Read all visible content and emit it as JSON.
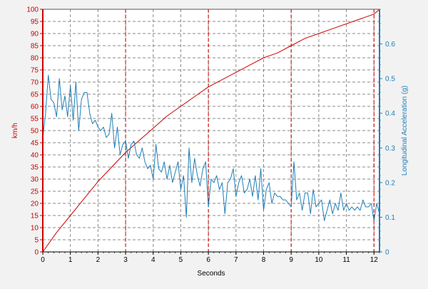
{
  "colors": {
    "background": "#f2f2f2",
    "plot_background": "#ffffff",
    "speed": "#cc0000",
    "acceleration": "#1f7fb8",
    "grid": "#8a8a8a",
    "text": "#000000"
  },
  "chart_data": {
    "type": "line",
    "xlabel": "Seconds",
    "xlim": [
      0,
      12.2
    ],
    "x_ticks": [
      "0",
      "1",
      "2",
      "3",
      "4",
      "5",
      "6",
      "7",
      "8",
      "9",
      "10",
      "11",
      "12"
    ],
    "grid": true,
    "y_left": {
      "label": "km/h",
      "lim": [
        0,
        100
      ],
      "ticks": [
        "0",
        "5",
        "10",
        "15",
        "20",
        "25",
        "30",
        "35",
        "40",
        "45",
        "50",
        "55",
        "60",
        "65",
        "70",
        "75",
        "80",
        "85",
        "90",
        "95",
        "100"
      ]
    },
    "y_right": {
      "label": "Longitudinal Acceleration (g)",
      "lim": [
        0,
        0.7
      ],
      "ticks": [
        "0",
        "0.1",
        "0.2",
        "0.3",
        "0.4",
        "0.5",
        "0.6"
      ]
    },
    "markers_x": [
      3,
      6,
      9,
      12
    ],
    "series": [
      {
        "key": "speed",
        "axis": "left",
        "x": [
          0,
          0.5,
          1,
          1.5,
          2,
          2.5,
          3,
          3.5,
          4,
          4.5,
          5,
          5.5,
          6,
          6.5,
          7,
          7.5,
          8,
          8.5,
          9,
          9.5,
          10,
          10.5,
          11,
          11.5,
          12,
          12.2
        ],
        "values": [
          0,
          8,
          15,
          22,
          29,
          35,
          41,
          46,
          51,
          56,
          60,
          64,
          68,
          71,
          74,
          77,
          80,
          82,
          85,
          88,
          90,
          92,
          94,
          96,
          98,
          100
        ]
      },
      {
        "key": "acceleration",
        "axis": "right",
        "x": [
          0,
          0.1,
          0.2,
          0.3,
          0.4,
          0.5,
          0.6,
          0.7,
          0.8,
          0.9,
          1,
          1.1,
          1.2,
          1.3,
          1.4,
          1.5,
          1.6,
          1.7,
          1.8,
          1.9,
          2,
          2.1,
          2.2,
          2.3,
          2.4,
          2.5,
          2.6,
          2.7,
          2.8,
          2.9,
          3,
          3.1,
          3.2,
          3.3,
          3.4,
          3.5,
          3.6,
          3.7,
          3.8,
          3.9,
          4,
          4.1,
          4.2,
          4.3,
          4.4,
          4.5,
          4.6,
          4.7,
          4.8,
          4.9,
          5,
          5.1,
          5.2,
          5.3,
          5.4,
          5.5,
          5.6,
          5.7,
          5.8,
          5.9,
          6,
          6.1,
          6.2,
          6.3,
          6.4,
          6.5,
          6.6,
          6.7,
          6.8,
          6.9,
          7,
          7.1,
          7.2,
          7.3,
          7.4,
          7.5,
          7.6,
          7.7,
          7.8,
          7.9,
          8,
          8.1,
          8.2,
          8.3,
          8.4,
          8.5,
          8.6,
          8.7,
          8.8,
          8.9,
          9,
          9.1,
          9.2,
          9.3,
          9.4,
          9.5,
          9.6,
          9.7,
          9.8,
          9.9,
          10,
          10.1,
          10.2,
          10.3,
          10.4,
          10.5,
          10.6,
          10.7,
          10.8,
          10.9,
          11,
          11.1,
          11.2,
          11.3,
          11.4,
          11.5,
          11.6,
          11.7,
          11.8,
          11.9,
          12,
          12.1,
          12.2
        ],
        "values": [
          0.33,
          0.4,
          0.51,
          0.44,
          0.43,
          0.39,
          0.5,
          0.41,
          0.45,
          0.39,
          0.48,
          0.38,
          0.49,
          0.35,
          0.44,
          0.46,
          0.46,
          0.4,
          0.37,
          0.38,
          0.36,
          0.35,
          0.36,
          0.33,
          0.34,
          0.4,
          0.3,
          0.36,
          0.28,
          0.31,
          0.32,
          0.27,
          0.31,
          0.32,
          0.28,
          0.27,
          0.3,
          0.26,
          0.24,
          0.25,
          0.21,
          0.31,
          0.24,
          0.23,
          0.26,
          0.21,
          0.25,
          0.2,
          0.23,
          0.26,
          0.18,
          0.22,
          0.1,
          0.3,
          0.2,
          0.27,
          0.22,
          0.19,
          0.24,
          0.26,
          0.13,
          0.21,
          0.2,
          0.22,
          0.18,
          0.2,
          0.11,
          0.2,
          0.21,
          0.24,
          0.16,
          0.2,
          0.22,
          0.17,
          0.18,
          0.21,
          0.16,
          0.22,
          0.15,
          0.24,
          0.12,
          0.18,
          0.2,
          0.14,
          0.17,
          0.16,
          0.16,
          0.15,
          0.15,
          0.14,
          0.13,
          0.26,
          0.15,
          0.17,
          0.12,
          0.17,
          0.17,
          0.11,
          0.18,
          0.13,
          0.14,
          0.15,
          0.09,
          0.12,
          0.15,
          0.11,
          0.14,
          0.12,
          0.17,
          0.12,
          0.14,
          0.12,
          0.13,
          0.12,
          0.13,
          0.12,
          0.15,
          0.13,
          0.13,
          0.14,
          0.09,
          0.14,
          0.11
        ]
      }
    ]
  }
}
